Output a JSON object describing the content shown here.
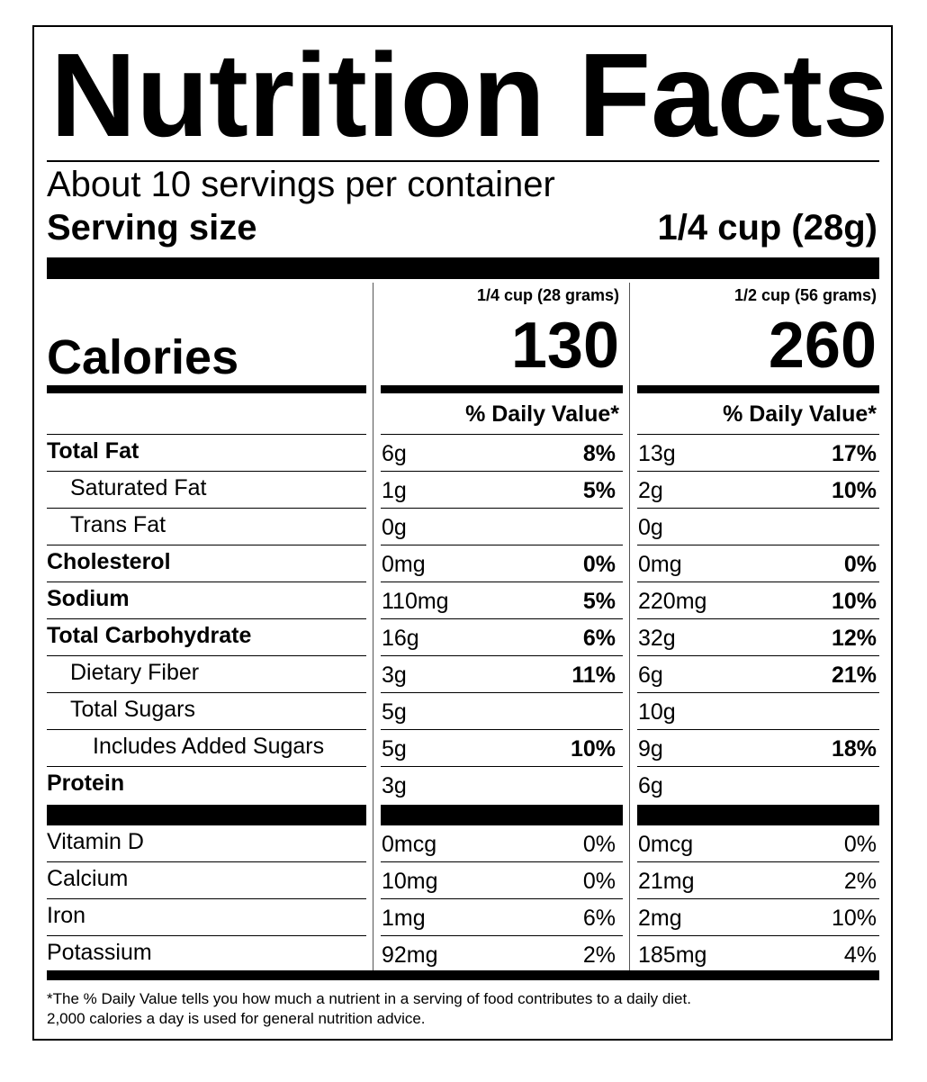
{
  "title": "Nutrition Facts",
  "servings_per_container": "About 10 servings per container",
  "serving_size_label": "Serving size",
  "serving_size_value": "1/4 cup (28g)",
  "calories_label": "Calories",
  "columns": [
    {
      "header": "1/4 cup (28 grams)",
      "calories": "130",
      "dv_header": "% Daily Value*"
    },
    {
      "header": "1/2 cup (56 grams)",
      "calories": "260",
      "dv_header": "% Daily Value*"
    }
  ],
  "nutrients": [
    {
      "name": "Total Fat",
      "bold": true,
      "indent": 0,
      "values": [
        {
          "amount": "6g",
          "dv": "8%"
        },
        {
          "amount": "13g",
          "dv": "17%"
        }
      ]
    },
    {
      "name": "Saturated Fat",
      "bold": false,
      "indent": 1,
      "values": [
        {
          "amount": "1g",
          "dv": "5%"
        },
        {
          "amount": "2g",
          "dv": "10%"
        }
      ]
    },
    {
      "name": "Trans Fat",
      "bold": false,
      "indent": 1,
      "values": [
        {
          "amount": "0g",
          "dv": ""
        },
        {
          "amount": "0g",
          "dv": ""
        }
      ]
    },
    {
      "name": "Cholesterol",
      "bold": true,
      "indent": 0,
      "values": [
        {
          "amount": "0mg",
          "dv": "0%"
        },
        {
          "amount": "0mg",
          "dv": "0%"
        }
      ]
    },
    {
      "name": "Sodium",
      "bold": true,
      "indent": 0,
      "values": [
        {
          "amount": "110mg",
          "dv": "5%"
        },
        {
          "amount": "220mg",
          "dv": "10%"
        }
      ]
    },
    {
      "name": "Total Carbohydrate",
      "bold": true,
      "indent": 0,
      "values": [
        {
          "amount": "16g",
          "dv": "6%"
        },
        {
          "amount": "32g",
          "dv": "12%"
        }
      ]
    },
    {
      "name": "Dietary Fiber",
      "bold": false,
      "indent": 1,
      "values": [
        {
          "amount": "3g",
          "dv": "11%"
        },
        {
          "amount": "6g",
          "dv": "21%"
        }
      ]
    },
    {
      "name": "Total Sugars",
      "bold": false,
      "indent": 1,
      "values": [
        {
          "amount": "5g",
          "dv": ""
        },
        {
          "amount": "10g",
          "dv": ""
        }
      ]
    },
    {
      "name": "Includes Added Sugars",
      "bold": false,
      "indent": 2,
      "values": [
        {
          "amount": "5g",
          "dv": "10%"
        },
        {
          "amount": "9g",
          "dv": "18%"
        }
      ]
    },
    {
      "name": "Protein",
      "bold": true,
      "indent": 0,
      "values": [
        {
          "amount": "3g",
          "dv": ""
        },
        {
          "amount": "6g",
          "dv": ""
        }
      ]
    }
  ],
  "vitamins": [
    {
      "name": "Vitamin D",
      "values": [
        {
          "amount": "0mcg",
          "dv": "0%"
        },
        {
          "amount": "0mcg",
          "dv": "0%"
        }
      ]
    },
    {
      "name": "Calcium",
      "values": [
        {
          "amount": "10mg",
          "dv": "0%"
        },
        {
          "amount": "21mg",
          "dv": "2%"
        }
      ]
    },
    {
      "name": "Iron",
      "values": [
        {
          "amount": "1mg",
          "dv": "6%"
        },
        {
          "amount": "2mg",
          "dv": "10%"
        }
      ]
    },
    {
      "name": "Potassium",
      "values": [
        {
          "amount": "92mg",
          "dv": "2%"
        },
        {
          "amount": "185mg",
          "dv": "4%"
        }
      ]
    }
  ],
  "footnote_line1": "*The % Daily Value tells you how much a nutrient in a serving of food contributes to a daily diet.",
  "footnote_line2": "2,000 calories a day is used for general nutrition advice."
}
